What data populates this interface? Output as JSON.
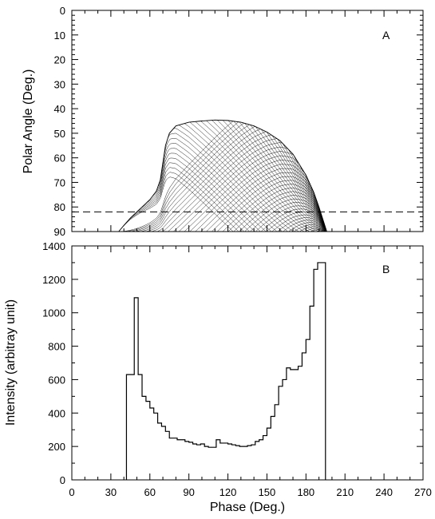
{
  "chart_data": [
    {
      "id": "A",
      "type": "line",
      "panel_label": "A",
      "xlabel": "Phase (Deg.)",
      "ylabel": "Polar Angle (Deg.)",
      "xlim": [
        0,
        270
      ],
      "ylim": [
        0,
        90
      ],
      "y_inverted": true,
      "x_ticks": [
        0,
        30,
        60,
        90,
        120,
        150,
        180,
        210,
        240,
        270
      ],
      "y_ticks": [
        0,
        10,
        20,
        30,
        40,
        50,
        60,
        70,
        80,
        90
      ],
      "y_tick_labels": [
        "0",
        "10",
        "20",
        "30",
        "40",
        "50",
        "60",
        "70",
        "80",
        "90"
      ],
      "reference_lines": [
        {
          "style": "dashed",
          "y": 82
        },
        {
          "style": "solid",
          "y": 90
        }
      ],
      "envelope": {
        "x": [
          36,
          40,
          45,
          50,
          55,
          60,
          65,
          68,
          70,
          72,
          75,
          80,
          90,
          100,
          110,
          120,
          130,
          140,
          150,
          160,
          170,
          180,
          186,
          190,
          193,
          196
        ],
        "y": [
          90,
          87.5,
          84.5,
          82,
          79.5,
          77,
          73.5,
          69,
          62,
          55,
          50,
          47,
          45.5,
          45,
          44.6,
          44.8,
          45.5,
          47,
          49.5,
          53,
          58.5,
          67,
          74,
          80,
          85,
          90
        ]
      },
      "mesh_families": 38,
      "grid": false
    },
    {
      "id": "B",
      "type": "histogram",
      "panel_label": "B",
      "xlabel": "Phase (Deg.)",
      "ylabel": "Intensity (arbitray unit)",
      "xlim": [
        0,
        270
      ],
      "ylim": [
        0,
        1400
      ],
      "x_ticks": [
        0,
        30,
        60,
        90,
        120,
        150,
        180,
        210,
        240,
        270
      ],
      "x_tick_labels": [
        "0",
        "30",
        "60",
        "90",
        "120",
        "150",
        "180",
        "210",
        "240",
        "270"
      ],
      "y_ticks": [
        0,
        200,
        400,
        600,
        800,
        1000,
        1200,
        1400
      ],
      "y_tick_labels": [
        "0",
        "200",
        "400",
        "600",
        "800",
        "1000",
        "1200",
        "1400"
      ],
      "bin_edges": [
        42,
        45,
        48,
        51,
        54,
        57,
        60,
        63,
        66,
        69,
        72,
        75,
        78,
        81,
        84,
        87,
        90,
        93,
        96,
        99,
        102,
        105,
        108,
        111,
        114,
        117,
        120,
        123,
        126,
        129,
        132,
        135,
        138,
        141,
        144,
        147,
        150,
        153,
        156,
        159,
        162,
        165,
        168,
        171,
        174,
        177,
        180,
        183,
        186,
        189,
        192,
        195
      ],
      "values": [
        630,
        630,
        1090,
        630,
        500,
        470,
        430,
        400,
        340,
        320,
        290,
        250,
        250,
        240,
        240,
        230,
        225,
        215,
        210,
        215,
        200,
        195,
        195,
        240,
        220,
        220,
        215,
        210,
        205,
        200,
        200,
        205,
        210,
        230,
        240,
        265,
        310,
        380,
        450,
        560,
        600,
        670,
        660,
        660,
        680,
        760,
        840,
        1040,
        1260,
        1300,
        1300
      ],
      "grid": false
    }
  ]
}
